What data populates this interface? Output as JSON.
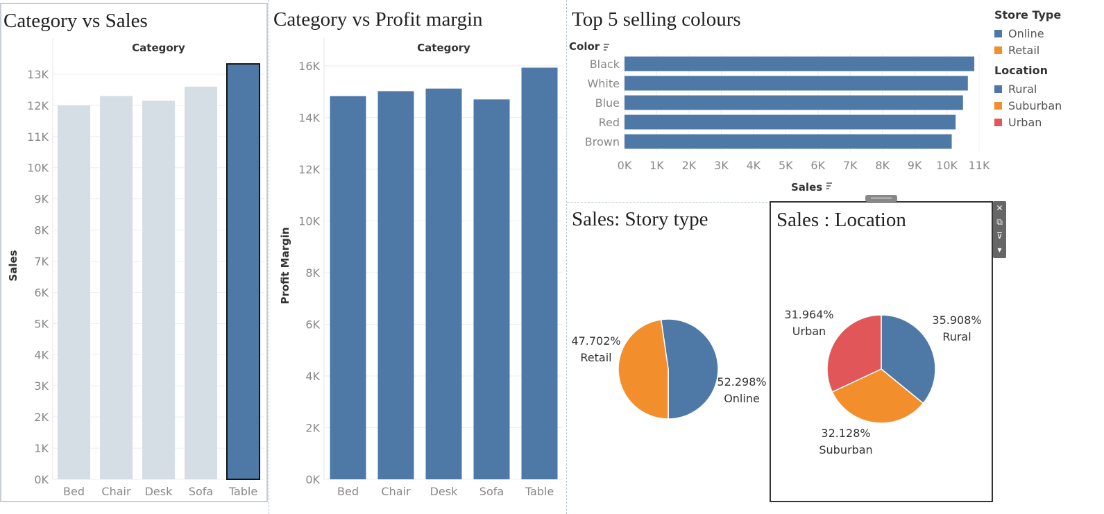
{
  "chart_data": [
    {
      "type": "bar",
      "title": "Category vs Sales",
      "column_header": "Category",
      "xlabel": "",
      "ylabel": "Sales",
      "categories": [
        "Bed",
        "Chair",
        "Desk",
        "Sofa",
        "Table"
      ],
      "values": [
        12000,
        12300,
        12150,
        12600,
        13330
      ],
      "highlighted": "Table",
      "ylim": [
        0,
        13600
      ],
      "yticks": [
        0,
        1000,
        2000,
        3000,
        4000,
        5000,
        6000,
        7000,
        8000,
        9000,
        10000,
        11000,
        12000,
        13000
      ],
      "ytick_labels": [
        "0K",
        "1K",
        "2K",
        "3K",
        "4K",
        "5K",
        "6K",
        "7K",
        "8K",
        "9K",
        "10K",
        "11K",
        "12K",
        "13K"
      ],
      "grid": true,
      "colors": {
        "bar": "#d5dde5",
        "highlight": "#4e79a7"
      }
    },
    {
      "type": "bar",
      "title": "Category vs Profit margin",
      "column_header": "Category",
      "xlabel": "",
      "ylabel": "Profit Margin",
      "categories": [
        "Bed",
        "Chair",
        "Desk",
        "Sofa",
        "Table"
      ],
      "values": [
        14830,
        15020,
        15120,
        14700,
        15930
      ],
      "ylim": [
        0,
        16400
      ],
      "yticks": [
        0,
        2000,
        4000,
        6000,
        8000,
        10000,
        12000,
        14000,
        16000
      ],
      "ytick_labels": [
        "0K",
        "2K",
        "4K",
        "6K",
        "8K",
        "10K",
        "12K",
        "14K",
        "16K"
      ],
      "grid": true,
      "colors": {
        "bar": "#4e79a7"
      }
    },
    {
      "type": "bar",
      "orientation": "horizontal",
      "title": "Top 5 selling colours",
      "row_header": "Color",
      "xlabel": "Sales",
      "ylabel": "",
      "categories": [
        "Black",
        "White",
        "Blue",
        "Red",
        "Brown"
      ],
      "values": [
        10850,
        10650,
        10500,
        10270,
        10150
      ],
      "xlim": [
        0,
        11300
      ],
      "xticks": [
        0,
        1000,
        2000,
        3000,
        4000,
        5000,
        6000,
        7000,
        8000,
        9000,
        10000,
        11000
      ],
      "xtick_labels": [
        "0K",
        "1K",
        "2K",
        "3K",
        "4K",
        "5K",
        "6K",
        "7K",
        "8K",
        "9K",
        "10K",
        "11K"
      ],
      "grid": true,
      "colors": {
        "bar": "#4e79a7"
      }
    },
    {
      "type": "pie",
      "title": "Sales: Story type",
      "slices": [
        {
          "label": "Online",
          "pct_label": "52.298%",
          "value": 52.298,
          "color": "#4e79a7"
        },
        {
          "label": "Retail",
          "pct_label": "47.702%",
          "value": 47.702,
          "color": "#f28e2b"
        }
      ]
    },
    {
      "type": "pie",
      "title": "Sales :  Location",
      "slices": [
        {
          "label": "Rural",
          "pct_label": "35.908%",
          "value": 35.908,
          "color": "#4e79a7"
        },
        {
          "label": "Suburban",
          "pct_label": "32.128%",
          "value": 32.128,
          "color": "#f28e2b"
        },
        {
          "label": "Urban",
          "pct_label": "31.964%",
          "value": 31.964,
          "color": "#e15759"
        }
      ]
    }
  ],
  "legend": {
    "store_type": {
      "title": "Store Type",
      "items": [
        {
          "label": "Online",
          "color": "#4e79a7"
        },
        {
          "label": "Retail",
          "color": "#f28e2b"
        }
      ]
    },
    "location": {
      "title": "Location",
      "items": [
        {
          "label": "Rural",
          "color": "#4e79a7"
        },
        {
          "label": "Suburban",
          "color": "#f28e2b"
        },
        {
          "label": "Urban",
          "color": "#e15759"
        }
      ]
    }
  },
  "toolbar": {
    "icons": [
      "close-icon",
      "popout-icon",
      "filter-icon",
      "more-options-icon"
    ],
    "glyphs": [
      "✕",
      "⧉",
      "⊽",
      "▾"
    ]
  }
}
